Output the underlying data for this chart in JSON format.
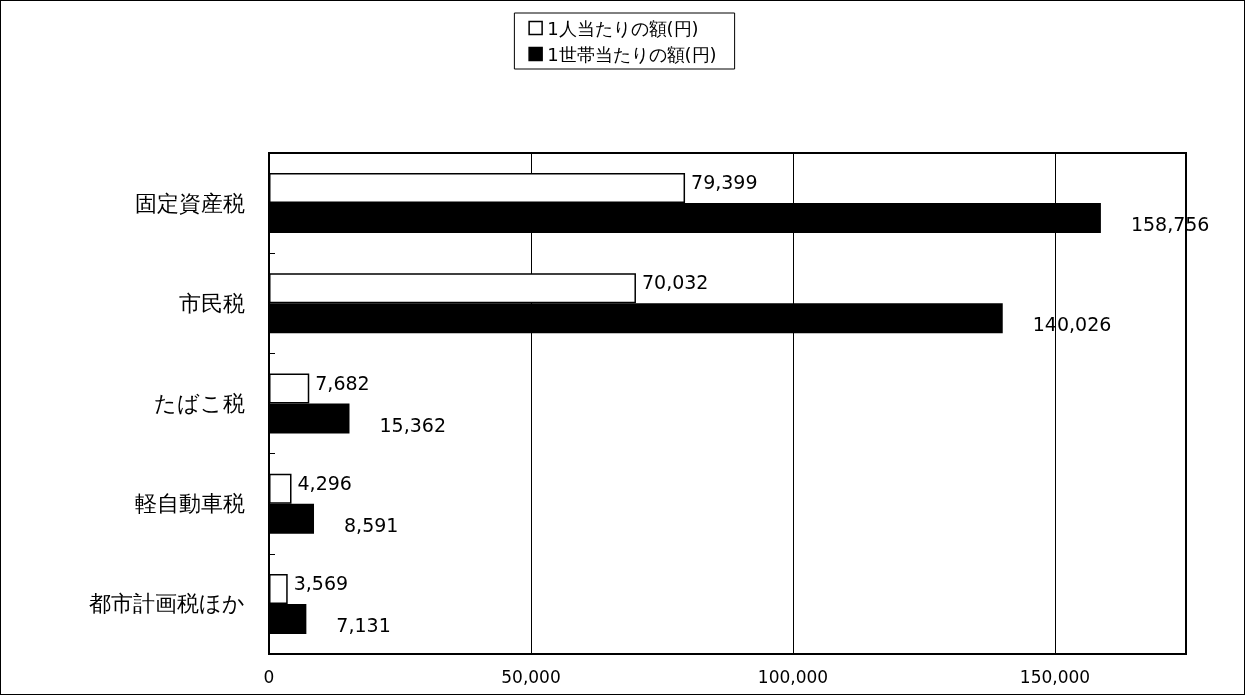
{
  "chart_data": {
    "type": "bar",
    "orientation": "horizontal",
    "categories": [
      "固定資産税",
      "市民税",
      "たばこ税",
      "軽自動車税",
      "都市計画税ほか"
    ],
    "series": [
      {
        "name": "1人当たりの額(円)",
        "color": "#ffffff",
        "values": [
          79399,
          70032,
          7682,
          4296,
          3569
        ],
        "value_labels": [
          "79,399",
          "70,032",
          "7,682",
          "4,296",
          "3,569"
        ]
      },
      {
        "name": "1世帯当たりの額(円)",
        "color": "#000000",
        "values": [
          158756,
          140026,
          15362,
          8591,
          7131
        ],
        "value_labels": [
          "158,756",
          "140,026",
          "15,362",
          "8,591",
          "7,131"
        ]
      }
    ],
    "xlim": [
      0,
      175000
    ],
    "xticks": [
      {
        "value": 0,
        "label": "0"
      },
      {
        "value": 50000,
        "label": "50,000"
      },
      {
        "value": 100000,
        "label": "100,000"
      },
      {
        "value": 150000,
        "label": "150,000"
      }
    ],
    "grid": "x",
    "legend": "top"
  }
}
